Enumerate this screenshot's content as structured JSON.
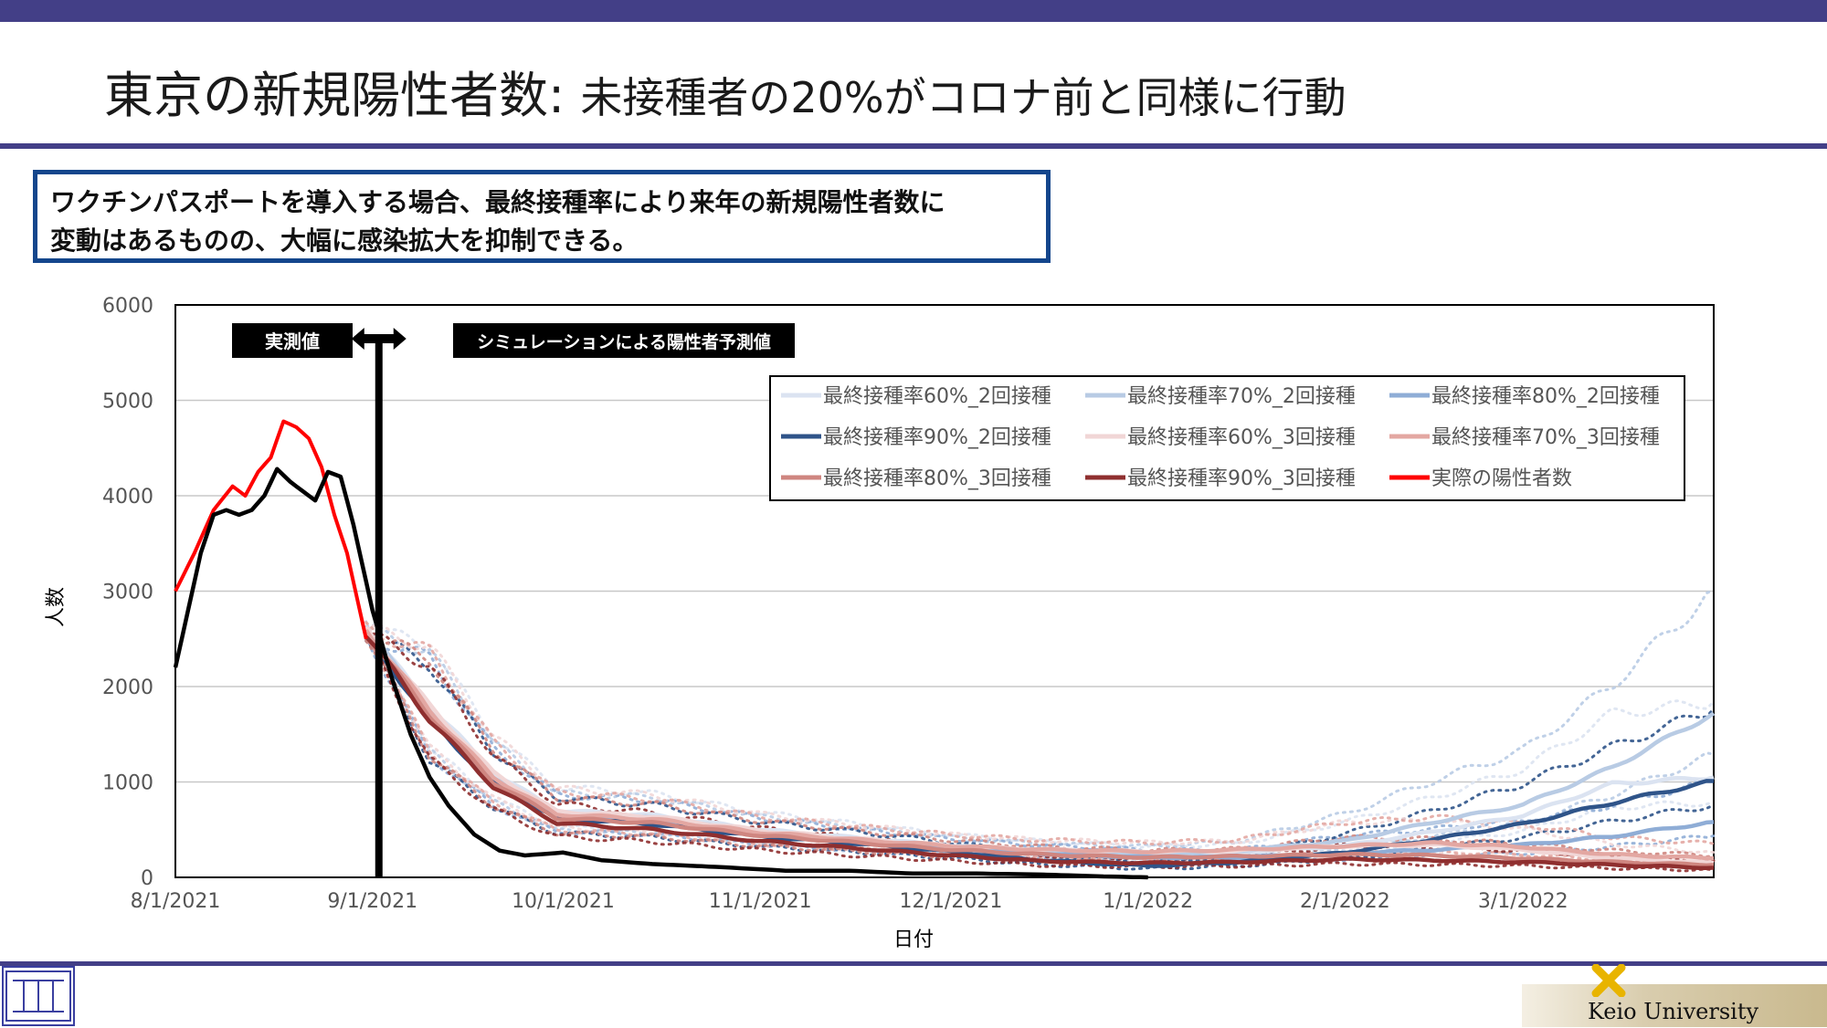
{
  "slide": {
    "title_main": "東京の新規陽性者数: ",
    "title_sub": "未接種者の20%がコロナ前と同様に行動",
    "callout_line1": "ワクチンパスポートを導入する場合、最終接種率により来年の新規陽性者数に",
    "callout_line2": "変動はあるものの、大幅に感染拡大を抑制できる。",
    "footer_university": "Keio University"
  },
  "colors": {
    "accent": "#433f87",
    "callout_border": "#14468c",
    "actual": "#ff0000",
    "observed_black": "#000000"
  },
  "chart_data": {
    "type": "line",
    "title": "",
    "xlabel": "日付",
    "ylabel": "人数",
    "ylim": [
      0,
      6000
    ],
    "yticks": [
      0,
      1000,
      2000,
      3000,
      4000,
      5000,
      6000
    ],
    "xlim": [
      "2021-08-01",
      "2022-03-31"
    ],
    "xticks": [
      "8/1/2021",
      "9/1/2021",
      "10/1/2021",
      "11/1/2021",
      "12/1/2021",
      "1/1/2022",
      "2/1/2022",
      "3/1/2022"
    ],
    "grid": "horizontal",
    "legend_position": "top-right",
    "annotations": {
      "observed_label": "実測値",
      "forecast_label": "シミュレーションによる陽性者予測値",
      "divider_date": "2021-08-31"
    },
    "series": [
      {
        "name": "最終接種率60%_2回接種",
        "color": "#dbe3f1",
        "x": [
          "2021-08-31",
          "2021-09-10",
          "2021-09-20",
          "2021-09-30",
          "2021-10-15",
          "2021-11-01",
          "2021-11-15",
          "2021-12-01",
          "2021-12-15",
          "2022-01-01",
          "2022-01-15",
          "2022-02-01",
          "2022-02-15",
          "2022-03-01",
          "2022-03-15",
          "2022-03-31"
        ],
        "values": [
          2600,
          1800,
          1100,
          700,
          650,
          500,
          420,
          330,
          280,
          240,
          260,
          330,
          480,
          650,
          980,
          1050
        ]
      },
      {
        "name": "最終接種率70%_2回接種",
        "color": "#b8cbe4",
        "x": [
          "2021-08-31",
          "2021-09-10",
          "2021-09-20",
          "2021-09-30",
          "2021-10-15",
          "2021-11-01",
          "2021-11-15",
          "2021-12-01",
          "2021-12-15",
          "2022-01-01",
          "2022-01-15",
          "2022-02-01",
          "2022-02-15",
          "2022-03-01",
          "2022-03-15",
          "2022-03-31"
        ],
        "values": [
          2600,
          1750,
          1050,
          650,
          620,
          470,
          390,
          310,
          260,
          240,
          280,
          380,
          580,
          760,
          1150,
          1720
        ]
      },
      {
        "name": "最終接種率80%_2回接種",
        "color": "#8fadd6",
        "x": [
          "2021-08-31",
          "2021-09-10",
          "2021-09-20",
          "2021-09-30",
          "2021-10-15",
          "2021-11-01",
          "2021-11-15",
          "2021-12-01",
          "2021-12-15",
          "2022-01-01",
          "2022-01-15",
          "2022-02-01",
          "2022-02-15",
          "2022-03-01",
          "2022-03-15",
          "2022-03-31"
        ],
        "values": [
          2550,
          1700,
          1000,
          640,
          600,
          460,
          380,
          300,
          250,
          210,
          210,
          250,
          290,
          340,
          430,
          580
        ]
      },
      {
        "name": "最終接種率90%_2回接種",
        "color": "#2f5489",
        "x": [
          "2021-08-31",
          "2021-09-10",
          "2021-09-20",
          "2021-09-30",
          "2021-10-15",
          "2021-11-01",
          "2021-11-15",
          "2021-12-01",
          "2021-12-15",
          "2022-01-01",
          "2022-01-15",
          "2022-02-01",
          "2022-02-15",
          "2022-03-01",
          "2022-03-15",
          "2022-03-31"
        ],
        "values": [
          2550,
          1650,
          980,
          620,
          560,
          430,
          360,
          270,
          180,
          120,
          160,
          260,
          400,
          560,
          780,
          1010
        ]
      },
      {
        "name": "最終接種率60%_3回接種",
        "color": "#f1d6d6",
        "x": [
          "2021-08-31",
          "2021-09-10",
          "2021-09-20",
          "2021-09-30",
          "2021-10-15",
          "2021-11-01",
          "2021-11-15",
          "2021-12-01",
          "2021-12-15",
          "2022-01-01",
          "2022-01-15",
          "2022-02-01",
          "2022-02-15",
          "2022-03-01",
          "2022-03-15",
          "2022-03-31"
        ],
        "values": [
          2600,
          1800,
          1100,
          690,
          640,
          490,
          410,
          330,
          290,
          270,
          280,
          330,
          340,
          290,
          200,
          150
        ]
      },
      {
        "name": "最終接種率70%_3回接種",
        "color": "#e3a7a2",
        "x": [
          "2021-08-31",
          "2021-09-10",
          "2021-09-20",
          "2021-09-30",
          "2021-10-15",
          "2021-11-01",
          "2021-11-15",
          "2021-12-01",
          "2021-12-15",
          "2022-01-01",
          "2022-01-15",
          "2022-02-01",
          "2022-02-15",
          "2022-03-01",
          "2022-03-15",
          "2022-03-31"
        ],
        "values": [
          2600,
          1750,
          1050,
          660,
          610,
          470,
          400,
          330,
          290,
          270,
          290,
          330,
          360,
          320,
          240,
          200
        ]
      },
      {
        "name": "最終接種率80%_3回接種",
        "color": "#cf8680",
        "x": [
          "2021-08-31",
          "2021-09-10",
          "2021-09-20",
          "2021-09-30",
          "2021-10-15",
          "2021-11-01",
          "2021-11-15",
          "2021-12-01",
          "2021-12-15",
          "2022-01-01",
          "2022-01-15",
          "2022-02-01",
          "2022-02-15",
          "2022-03-01",
          "2022-03-15",
          "2022-03-31"
        ],
        "values": [
          2550,
          1700,
          1000,
          620,
          570,
          440,
          370,
          290,
          240,
          210,
          220,
          240,
          230,
          200,
          160,
          130
        ]
      },
      {
        "name": "最終接種率90%_3回接種",
        "color": "#8f2f2f",
        "x": [
          "2021-08-31",
          "2021-09-10",
          "2021-09-20",
          "2021-09-30",
          "2021-10-15",
          "2021-11-01",
          "2021-11-15",
          "2021-12-01",
          "2021-12-15",
          "2022-01-01",
          "2022-01-15",
          "2022-02-01",
          "2022-02-15",
          "2022-03-01",
          "2022-03-15",
          "2022-03-31"
        ],
        "values": [
          2550,
          1650,
          950,
          570,
          500,
          380,
          310,
          230,
          170,
          150,
          160,
          190,
          180,
          160,
          130,
          100
        ]
      },
      {
        "name": "実際の陽性者数",
        "color": "#ff0000",
        "x": [
          "2021-08-01",
          "2021-08-04",
          "2021-08-07",
          "2021-08-10",
          "2021-08-12",
          "2021-08-14",
          "2021-08-16",
          "2021-08-18",
          "2021-08-20",
          "2021-08-22",
          "2021-08-24",
          "2021-08-26",
          "2021-08-28",
          "2021-08-31"
        ],
        "values": [
          3000,
          3400,
          3850,
          4100,
          4000,
          4250,
          4400,
          4780,
          4720,
          4600,
          4300,
          3800,
          3400,
          2500
        ]
      }
    ],
    "observed_black_series": {
      "x": [
        "2021-08-01",
        "2021-08-03",
        "2021-08-05",
        "2021-08-07",
        "2021-08-09",
        "2021-08-11",
        "2021-08-13",
        "2021-08-15",
        "2021-08-17",
        "2021-08-19",
        "2021-08-21",
        "2021-08-23",
        "2021-08-25",
        "2021-08-27",
        "2021-08-29",
        "2021-09-01",
        "2021-09-04",
        "2021-09-07",
        "2021-09-10",
        "2021-09-13",
        "2021-09-17",
        "2021-09-21",
        "2021-09-25",
        "2021-10-01",
        "2021-10-07",
        "2021-10-15",
        "2021-10-25",
        "2021-11-05",
        "2021-11-15",
        "2021-11-25",
        "2021-12-05",
        "2021-12-15",
        "2021-12-25",
        "2022-01-01"
      ],
      "values": [
        2200,
        2800,
        3400,
        3800,
        3850,
        3800,
        3850,
        4000,
        4280,
        4150,
        4050,
        3950,
        4250,
        4200,
        3700,
        2800,
        2100,
        1500,
        1050,
        750,
        450,
        280,
        230,
        260,
        180,
        140,
        110,
        70,
        70,
        40,
        40,
        30,
        10,
        0
      ]
    }
  }
}
